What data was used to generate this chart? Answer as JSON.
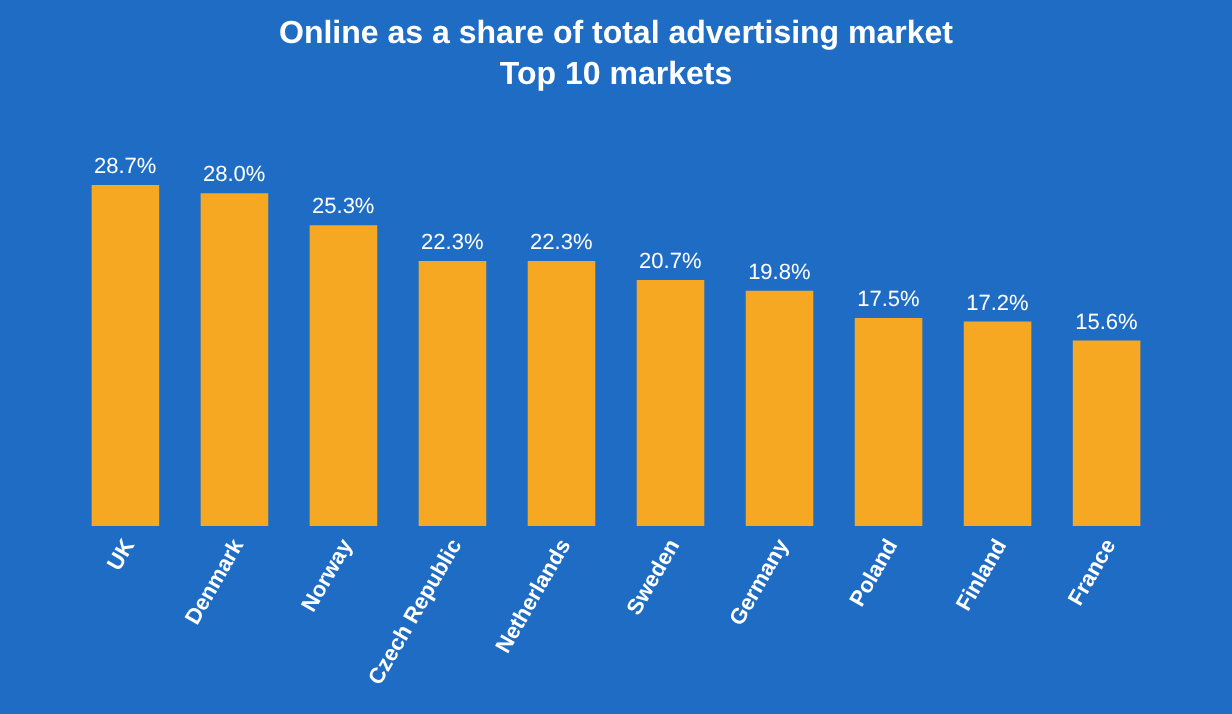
{
  "chart_data": {
    "type": "bar",
    "title": "Online as a share of total advertising market",
    "subtitle": "Top 10 markets",
    "categories": [
      "UK",
      "Denmark",
      "Norway",
      "Czech Republic",
      "Netherlands",
      "Sweden",
      "Germany",
      "Poland",
      "Finland",
      "France"
    ],
    "values": [
      28.7,
      28.0,
      25.3,
      22.3,
      22.3,
      20.7,
      19.8,
      17.5,
      17.2,
      15.6
    ],
    "value_labels": [
      "28.7%",
      "28.0%",
      "25.3%",
      "22.3%",
      "22.3%",
      "20.7%",
      "19.8%",
      "17.5%",
      "17.2%",
      "15.6%"
    ],
    "color": "#f7a823",
    "grid": false,
    "legend": false
  }
}
